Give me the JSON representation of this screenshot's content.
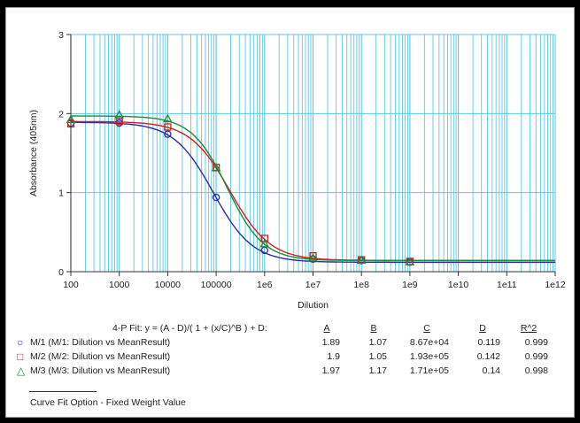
{
  "chart_data": {
    "type": "scatter",
    "xlabel": "Dilution",
    "ylabel": "Absorbance (405nm)",
    "xscale": "log",
    "xlim": [
      100,
      1000000000000.0
    ],
    "ylim": [
      0,
      3
    ],
    "x_ticks": [
      "100",
      "1000",
      "10000",
      "100000",
      "1e6",
      "1e7",
      "1e8",
      "1e9",
      "1e10",
      "1e11",
      "1e12"
    ],
    "y_ticks": [
      "0",
      "1",
      "2",
      "3"
    ],
    "grid": true,
    "series": [
      {
        "name": "M/1 (M/1: Dilution vs MeanResult)",
        "color": "#2b2ba8",
        "marker": "circle",
        "x": [
          100,
          1000,
          10000,
          100000,
          1000000,
          10000000,
          100000000,
          1000000000
        ],
        "y": [
          1.88,
          1.88,
          1.74,
          0.94,
          0.27,
          0.16,
          0.14,
          0.12
        ],
        "fit": {
          "A": 1.89,
          "B": 1.07,
          "C": 86700,
          "D": 0.119
        }
      },
      {
        "name": "M/2 (M/2: Dilution vs MeanResult)",
        "color": "#cc2020",
        "marker": "square",
        "x": [
          100,
          1000,
          10000,
          100000,
          1000000,
          10000000,
          100000000,
          1000000000
        ],
        "y": [
          1.87,
          1.9,
          1.83,
          1.32,
          0.42,
          0.2,
          0.15,
          0.13
        ],
        "fit": {
          "A": 1.9,
          "B": 1.05,
          "C": 193000,
          "D": 0.142
        }
      },
      {
        "name": "M/3 (M/3: Dilution vs MeanResult)",
        "color": "#1f8a3a",
        "marker": "triangle",
        "x": [
          100,
          1000,
          10000,
          100000,
          1000000,
          10000000,
          100000000,
          1000000000
        ],
        "y": [
          1.92,
          1.98,
          1.93,
          1.31,
          0.35,
          0.17,
          0.14,
          0.12
        ],
        "fit": {
          "A": 1.97,
          "B": 1.17,
          "C": 171000,
          "D": 0.14
        }
      }
    ]
  },
  "fit_table": {
    "equation": "4-P Fit:  y = (A - D)/( 1 + (x/C)^B ) + D:",
    "headers": [
      "A",
      "B",
      "C",
      "D",
      "R^2"
    ],
    "rows": [
      {
        "label": "M/1 (M/1: Dilution vs MeanResult)",
        "marker": "○",
        "color": "#2b2ba8",
        "values": [
          "1.89",
          "1.07",
          "8.67e+04",
          "0.119",
          "0.999"
        ]
      },
      {
        "label": "M/2 (M/2: Dilution vs MeanResult)",
        "marker": "□",
        "color": "#cc2020",
        "values": [
          "1.9",
          "1.05",
          "1.93e+05",
          "0.142",
          "0.999"
        ]
      },
      {
        "label": "M/3 (M/3: Dilution vs MeanResult)",
        "marker": "△",
        "color": "#1f8a3a",
        "values": [
          "1.97",
          "1.17",
          "1.71e+05",
          "0.14",
          "0.998"
        ]
      }
    ]
  },
  "footer": "Curve Fit Option - Fixed Weight Value"
}
